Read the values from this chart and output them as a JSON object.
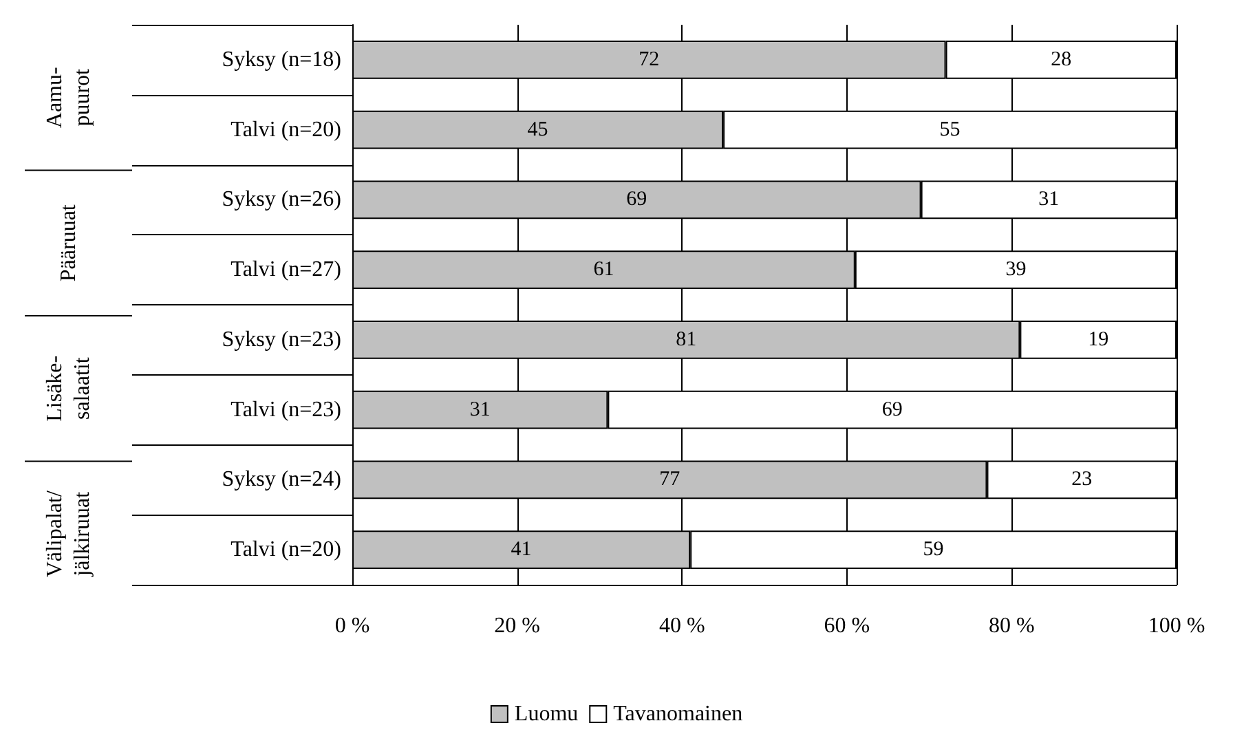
{
  "chart_data": {
    "type": "bar",
    "orientation": "horizontal",
    "stacked": true,
    "categories": [
      "Syksy (n=18)",
      "Talvi (n=20)",
      "Syksy (n=26)",
      "Talvi (n=27)",
      "Syksy (n=23)",
      "Talvi (n=23)",
      "Syksy (n=24)",
      "Talvi (n=20)"
    ],
    "series": [
      {
        "name": "Luomu",
        "color": "#c0c0c0",
        "values": [
          72,
          45,
          69,
          61,
          81,
          31,
          77,
          41
        ]
      },
      {
        "name": "Tavanomainen",
        "color": "#ffffff",
        "values": [
          28,
          55,
          31,
          39,
          19,
          69,
          23,
          59
        ]
      }
    ],
    "annotations": [
      "Aamu-\npuurot",
      "Pääruuat",
      "Lisäke-\nsalaatit",
      "Välipalat/\njälkiruuat"
    ],
    "xlim": [
      0,
      100
    ],
    "xticks": [
      {
        "value": 0,
        "label": "0 %"
      },
      {
        "value": 20,
        "label": "20 %"
      },
      {
        "value": 40,
        "label": "40 %"
      },
      {
        "value": 60,
        "label": "60 %"
      },
      {
        "value": 80,
        "label": "80 %"
      },
      {
        "value": 100,
        "label": "100 %"
      }
    ],
    "grid": "x",
    "legend": "bottom",
    "data_labels": true
  }
}
